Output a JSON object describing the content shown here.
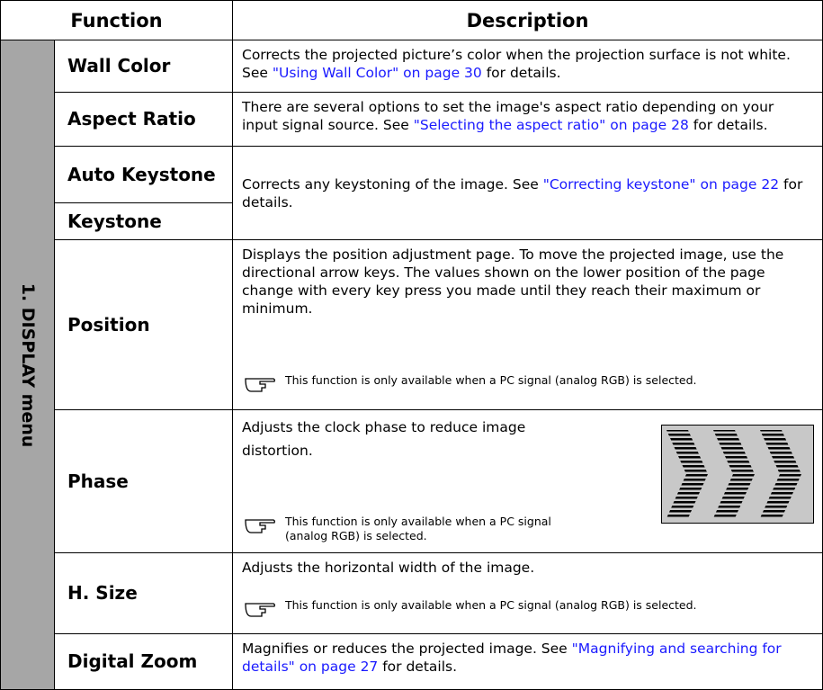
{
  "header": {
    "function": "Function",
    "description": "Description"
  },
  "group": "1. DISPLAY menu",
  "rows": [
    {
      "function": "Wall Color",
      "description": {
        "before": "Corrects the projected picture’s color when the projection surface is not white. See ",
        "link": "\"Using Wall Color\" on page 30",
        "after": " for details."
      }
    },
    {
      "function": "Aspect Ratio",
      "description": {
        "before": "There are several options to set the image's aspect ratio depending on your input signal source. See ",
        "link": "\"Selecting the aspect ratio\" on page 28",
        "after": " for details."
      }
    },
    {
      "function": "Auto Keystone",
      "description": {
        "before": "Corrects any keystoning of the image. See ",
        "link": "\"Correcting keystone\" on page 22",
        "after": " for details."
      }
    },
    {
      "function": "Keystone"
    },
    {
      "function": "Position",
      "description": "Displays the position adjustment page. To move the projected image, use the directional arrow keys. The values shown on the lower position of the page change with every key press you made until they reach their maximum or minimum.",
      "note": "This function is only available when a PC signal (analog RGB) is selected."
    },
    {
      "function": "Phase",
      "description": "Adjusts the clock phase to reduce image distortion.",
      "note": "This function is only available when a PC signal (analog RGB) is selected."
    },
    {
      "function": "H. Size",
      "description": "Adjusts the horizontal width of the image.",
      "note": "This function is only available when a PC signal (analog RGB) is selected."
    },
    {
      "function": "Digital Zoom",
      "description": {
        "before": "Magnifies or reduces the projected image. See ",
        "link": "\"Magnifying and searching for details\" on page 27",
        "after": " for details."
      }
    }
  ]
}
